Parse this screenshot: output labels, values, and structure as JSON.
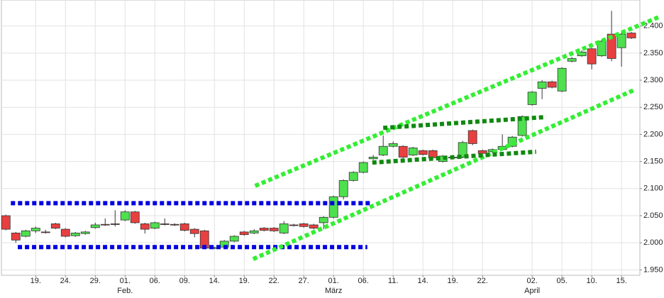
{
  "chart_data": {
    "type": "candlestick",
    "categories": [
      null,
      null,
      null,
      "19.",
      null,
      null,
      "24.",
      null,
      null,
      "29.",
      null,
      null,
      "01.",
      null,
      null,
      "06.",
      null,
      null,
      "09.",
      null,
      null,
      "14.",
      null,
      null,
      "19.",
      null,
      null,
      "22.",
      null,
      null,
      "27.",
      null,
      null,
      "01.",
      null,
      null,
      "06.",
      null,
      null,
      "11.",
      null,
      null,
      "14.",
      null,
      null,
      "19.",
      null,
      null,
      "22.",
      null,
      null,
      null,
      null,
      "02.",
      null,
      null,
      "05.",
      null,
      null,
      "10.",
      null,
      null,
      "15.",
      null
    ],
    "month_labels": [
      null,
      null,
      null,
      null,
      null,
      null,
      null,
      null,
      null,
      null,
      null,
      null,
      "Feb.",
      null,
      null,
      null,
      null,
      null,
      null,
      null,
      null,
      null,
      null,
      null,
      null,
      null,
      null,
      null,
      null,
      null,
      null,
      null,
      null,
      "März",
      null,
      null,
      null,
      null,
      null,
      null,
      null,
      null,
      null,
      null,
      null,
      null,
      null,
      null,
      null,
      null,
      null,
      null,
      null,
      "April",
      null,
      null,
      null,
      null,
      null,
      null,
      null,
      null,
      null,
      null
    ],
    "open": [
      2.05,
      2.018,
      2.012,
      2.022,
      2.02,
      2.035,
      2.025,
      2.013,
      2.017,
      2.028,
      2.034,
      2.035,
      2.042,
      2.057,
      2.035,
      2.027,
      2.035,
      2.034,
      2.035,
      2.025,
      2.022,
      1.99,
      1.992,
      2.003,
      2.02,
      2.018,
      2.027,
      2.027,
      2.018,
      2.033,
      2.035,
      2.033,
      2.037,
      2.047,
      2.085,
      2.115,
      2.13,
      2.155,
      2.162,
      2.178,
      2.178,
      2.162,
      2.17,
      2.17,
      2.15,
      2.157,
      2.158,
      2.207,
      2.17,
      2.168,
      2.172,
      2.178,
      2.198,
      2.255,
      2.285,
      2.297,
      2.28,
      2.335,
      2.345,
      2.358,
      2.345,
      2.385,
      2.36,
      2.387
    ],
    "close": [
      2.025,
      2.005,
      2.022,
      2.027,
      2.019,
      2.027,
      2.012,
      2.018,
      2.02,
      2.033,
      2.033,
      2.034,
      2.057,
      2.037,
      2.025,
      2.037,
      2.034,
      2.033,
      2.023,
      2.017,
      1.99,
      1.991,
      2.003,
      2.012,
      2.015,
      2.022,
      2.023,
      2.022,
      2.035,
      2.032,
      2.03,
      2.027,
      2.047,
      2.085,
      2.115,
      2.13,
      2.148,
      2.158,
      2.178,
      2.183,
      2.158,
      2.175,
      2.163,
      2.157,
      2.16,
      2.158,
      2.185,
      2.183,
      2.165,
      2.172,
      2.178,
      2.195,
      2.233,
      2.278,
      2.297,
      2.287,
      2.322,
      2.34,
      2.352,
      2.33,
      2.372,
      2.34,
      2.385,
      2.378
    ],
    "high": [
      2.052,
      2.02,
      2.024,
      2.03,
      2.024,
      2.037,
      2.027,
      2.02,
      2.022,
      2.037,
      2.045,
      2.06,
      2.06,
      2.059,
      2.037,
      2.039,
      2.045,
      2.036,
      2.037,
      2.027,
      2.024,
      1.993,
      2.005,
      2.014,
      2.022,
      2.025,
      2.029,
      2.029,
      2.04,
      2.035,
      2.037,
      2.035,
      2.049,
      2.087,
      2.117,
      2.132,
      2.15,
      2.162,
      2.198,
      2.187,
      2.18,
      2.177,
      2.172,
      2.172,
      2.162,
      2.16,
      2.188,
      2.209,
      2.172,
      2.174,
      2.2,
      2.197,
      2.235,
      2.28,
      2.3,
      2.299,
      2.324,
      2.343,
      2.355,
      2.36,
      2.374,
      2.428,
      2.388,
      2.389
    ],
    "low": [
      2.023,
      2.0,
      2.01,
      2.018,
      2.017,
      2.025,
      2.01,
      2.011,
      2.015,
      2.026,
      2.031,
      2.03,
      2.04,
      2.035,
      2.017,
      2.025,
      2.032,
      2.031,
      2.021,
      2.01,
      1.988,
      1.988,
      1.99,
      2.001,
      2.013,
      2.016,
      2.021,
      2.02,
      2.016,
      2.03,
      2.028,
      2.025,
      2.025,
      2.045,
      2.08,
      2.113,
      2.128,
      2.153,
      2.16,
      2.176,
      2.156,
      2.16,
      2.161,
      2.155,
      2.148,
      2.155,
      2.156,
      2.18,
      2.163,
      2.166,
      2.17,
      2.176,
      2.196,
      2.253,
      2.265,
      2.285,
      2.278,
      2.333,
      2.343,
      2.32,
      2.343,
      2.335,
      2.325,
      2.376
    ],
    "up_color": "#4ee04e",
    "down_color": "#e84040",
    "ylim": [
      1.94,
      2.448
    ],
    "xlim": [
      -0.45,
      63.85
    ],
    "yticks": [
      {
        "value": 1.95,
        "label": "1.950"
      },
      {
        "value": 2.0,
        "label": "2.000"
      },
      {
        "value": 2.05,
        "label": "2.050"
      },
      {
        "value": 2.1,
        "label": "2.100"
      },
      {
        "value": 2.15,
        "label": "2.150"
      },
      {
        "value": 2.2,
        "label": "2.200"
      },
      {
        "value": 2.25,
        "label": "2.250"
      },
      {
        "value": 2.3,
        "label": "2.300"
      },
      {
        "value": 2.35,
        "label": "2.350"
      },
      {
        "value": 2.4,
        "label": "2.400"
      }
    ],
    "grid": true,
    "lines": [
      {
        "color": "#0000e0",
        "x": [
          0.5,
          36.7
        ],
        "y": [
          2.073,
          2.073
        ]
      },
      {
        "color": "#0000e0",
        "x": [
          1.2,
          36.4
        ],
        "y": [
          1.992,
          1.992
        ]
      },
      {
        "color": "#33ee33",
        "x": [
          25.1,
          65.7
        ],
        "y": [
          2.105,
          2.416
        ]
      },
      {
        "color": "#33ee33",
        "x": [
          24.9,
          63.4
        ],
        "y": [
          1.97,
          2.283
        ]
      },
      {
        "color": "#118811",
        "x": [
          38,
          54.4
        ],
        "y": [
          2.212,
          2.232
        ]
      },
      {
        "color": "#118811",
        "x": [
          36.9,
          53.4
        ],
        "y": [
          2.148,
          2.168
        ]
      }
    ]
  }
}
